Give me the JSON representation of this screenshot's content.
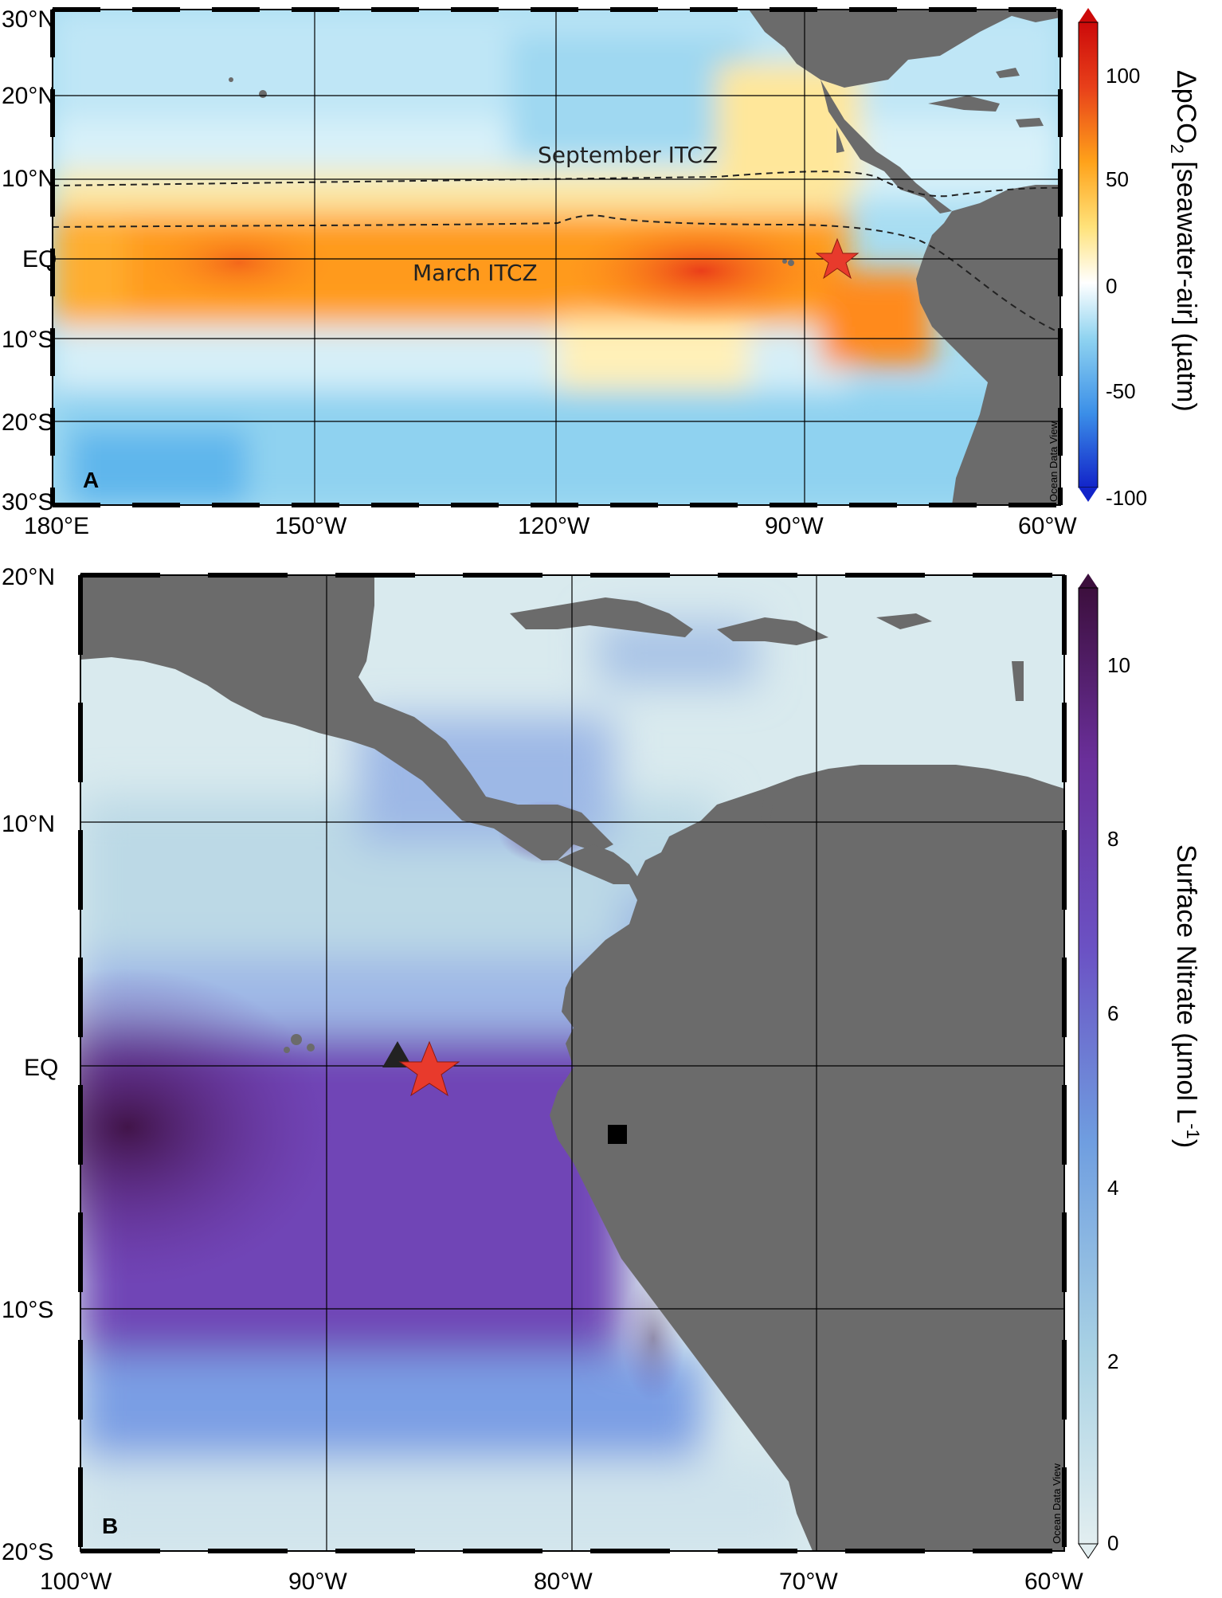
{
  "panels": [
    {
      "id": "A",
      "panel_label": "A",
      "watermark": "Ocean Data View",
      "x_ticks": [
        "180°E",
        "150°W",
        "120°W",
        "90°W",
        "60°W"
      ],
      "y_ticks": [
        "30°N",
        "20°N",
        "10°N",
        "EQ",
        "10°S",
        "20°S",
        "30°S"
      ],
      "lon_range": [
        180,
        300
      ],
      "lat_range": [
        -30,
        30
      ],
      "annotations": [
        "September ITCZ",
        "March ITCZ"
      ],
      "colorbar": {
        "label_main": "ΔpCO",
        "label_sub": "2",
        "label_rest": " [seawater-air] (µatm)",
        "ticks": [
          "100",
          "50",
          "0",
          "-50",
          "-100"
        ],
        "range": [
          -100,
          125
        ]
      },
      "markers": [
        {
          "type": "star",
          "color": "#e83a2c",
          "lon": 274.5,
          "lat": 0
        }
      ]
    },
    {
      "id": "B",
      "panel_label": "B",
      "watermark": "Ocean Data View",
      "x_ticks": [
        "100°W",
        "90°W",
        "80°W",
        "70°W",
        "60°W"
      ],
      "y_ticks": [
        "20°N",
        "10°N",
        "EQ",
        "10°S",
        "20°S"
      ],
      "lon_range": [
        -100,
        -60
      ],
      "lat_range": [
        -20,
        20
      ],
      "colorbar": {
        "label_main": "Surface Nitrate (µmol L",
        "label_sup": "-1",
        "label_rest": ")",
        "ticks": [
          "10",
          "8",
          "6",
          "4",
          "2",
          "0"
        ],
        "range": [
          0,
          11
        ]
      },
      "markers": [
        {
          "type": "triangle",
          "color": "#222222",
          "lon": -87.2,
          "lat": 0.2
        },
        {
          "type": "star",
          "color": "#e83a2c",
          "lon": -85.9,
          "lat": -0.1
        },
        {
          "type": "square",
          "color": "#000000",
          "lon": -78.2,
          "lat": -3.5
        }
      ]
    }
  ],
  "colors": {
    "land": "#6b6b6b",
    "pco2_scale": [
      "#1224c9",
      "#3b8fe8",
      "#8fd3f0",
      "#ffffff",
      "#ffe27a",
      "#ffa21a",
      "#e8401a",
      "#cc0a0a"
    ],
    "nitrate_scale": [
      "#e2eef0",
      "#a9d2e4",
      "#6f9ee0",
      "#6b52c4",
      "#6a2f9a",
      "#3c0f3d"
    ]
  }
}
